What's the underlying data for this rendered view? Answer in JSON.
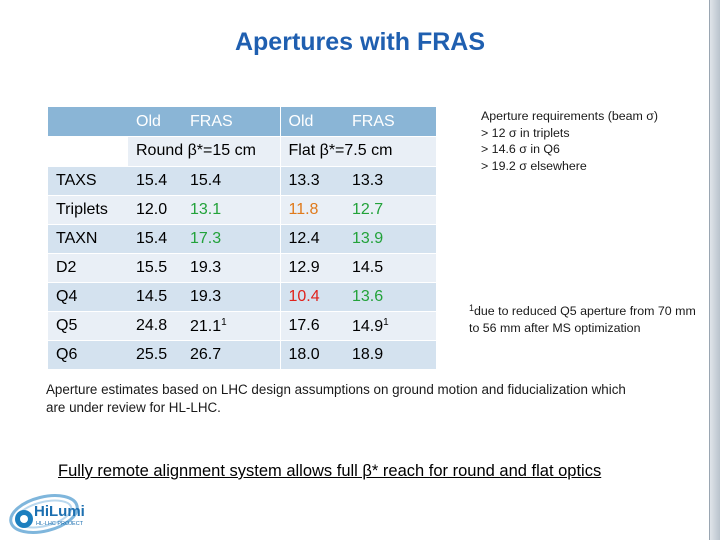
{
  "slide": {
    "title": "Apertures with FRAS"
  },
  "table": {
    "header_labels": [
      "Old",
      "FRAS",
      "Old",
      "FRAS"
    ],
    "group_labels": [
      "Round β*=15 cm",
      "Flat β*=7.5 cm"
    ],
    "rows": [
      {
        "label": "TAXS",
        "cells": [
          "15.4",
          "15.4",
          "13.3",
          "13.3"
        ],
        "sups": [
          "",
          "",
          "",
          ""
        ],
        "colors": [
          "default",
          "default",
          "default",
          "default"
        ]
      },
      {
        "label": "Triplets",
        "cells": [
          "12.0",
          "13.1",
          "11.8",
          "12.7"
        ],
        "sups": [
          "",
          "",
          "",
          ""
        ],
        "colors": [
          "default",
          "green",
          "orange",
          "green"
        ]
      },
      {
        "label": "TAXN",
        "cells": [
          "15.4",
          "17.3",
          "12.4",
          "13.9"
        ],
        "sups": [
          "",
          "",
          "",
          ""
        ],
        "colors": [
          "default",
          "green",
          "default",
          "green"
        ]
      },
      {
        "label": "D2",
        "cells": [
          "15.5",
          "19.3",
          "12.9",
          "14.5"
        ],
        "sups": [
          "",
          "",
          "",
          ""
        ],
        "colors": [
          "default",
          "default",
          "default",
          "default"
        ]
      },
      {
        "label": "Q4",
        "cells": [
          "14.5",
          "19.3",
          "10.4",
          "13.6"
        ],
        "sups": [
          "",
          "",
          "",
          ""
        ],
        "colors": [
          "default",
          "default",
          "red",
          "green"
        ]
      },
      {
        "label": "Q5",
        "cells": [
          "24.8",
          "21.1",
          "17.6",
          "14.9"
        ],
        "sups": [
          "",
          "1",
          "",
          "1"
        ],
        "colors": [
          "default",
          "default",
          "default",
          "default"
        ]
      },
      {
        "label": "Q6",
        "cells": [
          "25.5",
          "26.7",
          "18.0",
          "18.9"
        ],
        "sups": [
          "",
          "",
          "",
          ""
        ],
        "colors": [
          "default",
          "default",
          "default",
          "default"
        ]
      }
    ],
    "colors": {
      "header": "#8ab5d6",
      "row_light": "#e9eff6",
      "row_dark": "#d4e2ef",
      "green": "#22a23a",
      "orange": "#e07a1b",
      "red": "#e0221c"
    }
  },
  "requirements": {
    "lines": [
      "Aperture requirements (beam σ)",
      "> 12 σ  in triplets",
      "> 14.6 σ in Q6",
      "> 19.2 σ elsewhere"
    ]
  },
  "footnote": {
    "marker": "1",
    "text": "due to reduced Q5 aperture from 70 mm to 56 mm after MS optimization"
  },
  "estimates_note": "Aperture estimates based on LHC design assumptions on ground motion and fiducialization which are under review for HL-LHC.",
  "conclusion": "Fully remote alignment system allows full β* reach for round and flat optics",
  "logo": {
    "name": "HiLumi",
    "subtitle": "HL-LHC PROJECT"
  },
  "theme": {
    "title_color": "#1f5fb0"
  }
}
